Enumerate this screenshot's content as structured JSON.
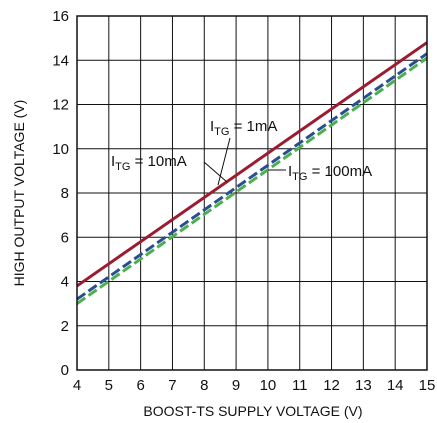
{
  "chart_data": {
    "type": "line",
    "xlabel": "BOOST-TS SUPPLY VOLTAGE (V)",
    "ylabel": "HIGH OUTPUT VOLTAGE (V)",
    "xlim": [
      4,
      15
    ],
    "ylim": [
      0,
      16
    ],
    "xticks": [
      4,
      5,
      6,
      7,
      8,
      9,
      10,
      11,
      12,
      13,
      14,
      15
    ],
    "yticks": [
      0,
      2,
      4,
      6,
      8,
      10,
      12,
      14,
      16
    ],
    "grid": true,
    "series": [
      {
        "name": "I_TG = 1mA",
        "label_main": "I",
        "label_sub": "TG",
        "label_rest": " = 1mA",
        "color": "#9b1b30",
        "dash": "solid",
        "x": [
          4,
          15
        ],
        "y": [
          3.8,
          14.8
        ]
      },
      {
        "name": "I_TG = 10mA",
        "label_main": "I",
        "label_sub": "TG",
        "label_rest": " = 10mA",
        "color": "#2a4f8f",
        "dash": "dashed",
        "x": [
          4,
          15
        ],
        "y": [
          3.2,
          14.3
        ]
      },
      {
        "name": "I_TG = 100mA",
        "label_main": "I",
        "label_sub": "TG",
        "label_rest": " = 100mA",
        "color": "#4caf50",
        "dash": "dashed",
        "x": [
          4,
          15
        ],
        "y": [
          3.0,
          14.1
        ]
      }
    ]
  }
}
